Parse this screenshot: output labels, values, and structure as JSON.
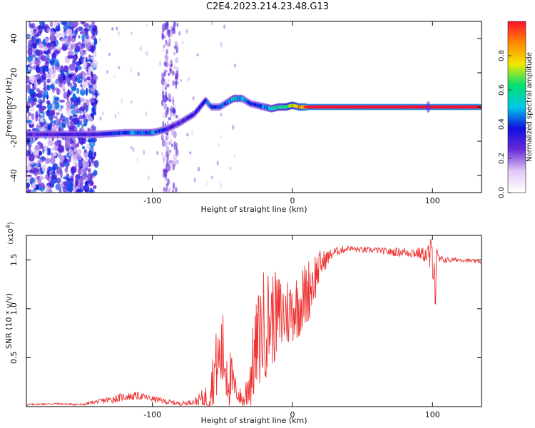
{
  "figure": {
    "title": "C2E4.2023.214.23.48.G13"
  },
  "chart_data": [
    {
      "type": "heatmap",
      "title": "",
      "xlabel": "Height of straight line (km)",
      "ylabel": "Frequency (Hz)",
      "xlim": [
        -190,
        135
      ],
      "ylim": [
        -50,
        50
      ],
      "x_ticks": [
        -100,
        0,
        100
      ],
      "x_tick_labels": [
        "-100",
        "0",
        "100"
      ],
      "y_ticks": [
        -40,
        -20,
        0,
        20,
        40
      ],
      "y_tick_labels": [
        "-40",
        "-20",
        "0",
        "20",
        "40"
      ],
      "colorbar": {
        "label": "Normalized spectral amplitude",
        "range": [
          0,
          1
        ],
        "ticks": [
          0.0,
          0.2,
          0.4,
          0.6,
          0.8
        ],
        "tick_labels": [
          "0.0",
          "0.2",
          "0.4",
          "0.6",
          "0.8"
        ],
        "colors": [
          "#ffffff",
          "#e2c8f5",
          "#6a2bd8",
          "#1010e0",
          "#00c8e8",
          "#00e070",
          "#f0e800",
          "#ff8800",
          "#ff1030"
        ]
      },
      "ridge": {
        "x": [
          -190,
          -140,
          -120,
          -100,
          -90,
          -80,
          -70,
          -62,
          -58,
          -52,
          -48,
          -42,
          -36,
          -30,
          -25,
          -20,
          -15,
          -10,
          -5,
          0,
          5,
          10,
          30,
          60,
          100,
          135
        ],
        "frequency": [
          -16,
          -16,
          -15,
          -15,
          -13,
          -9,
          -4,
          4,
          0,
          0,
          2,
          5,
          5,
          2,
          1,
          0,
          -1,
          0,
          0,
          1,
          0,
          0,
          0,
          0,
          0,
          0
        ],
        "amplitude": [
          0.3,
          0.35,
          0.45,
          0.5,
          0.35,
          0.3,
          0.35,
          0.4,
          0.45,
          0.4,
          0.45,
          0.55,
          0.5,
          0.4,
          0.45,
          0.5,
          0.55,
          0.6,
          0.7,
          0.85,
          0.95,
          0.98,
          1.0,
          1.0,
          1.0,
          1.0
        ]
      }
    },
    {
      "type": "line",
      "title": "",
      "xlabel": "Height of straight line (km)",
      "ylabel": "SNR (10 * v/v)",
      "y_multiplier_label": "(x10",
      "y_multiplier_exponent": "4",
      "y_multiplier_close": ")",
      "xlim": [
        -190,
        135
      ],
      "ylim": [
        0,
        1.75
      ],
      "x_ticks": [
        -100,
        0,
        100
      ],
      "x_tick_labels": [
        "-100",
        "0",
        "100"
      ],
      "y_ticks": [
        0.5,
        1.0,
        1.5
      ],
      "y_tick_labels": [
        "0.5",
        "1.0",
        "1.5"
      ],
      "series": [
        {
          "color": "#ee3333",
          "x": [
            -190,
            -170,
            -150,
            -140,
            -130,
            -120,
            -110,
            -100,
            -90,
            -80,
            -70,
            -60,
            -55,
            -50,
            -45,
            -40,
            -35,
            -30,
            -25,
            -20,
            -15,
            -10,
            -5,
            0,
            5,
            10,
            15,
            20,
            25,
            30,
            40,
            50,
            60,
            70,
            80,
            90,
            95,
            100,
            105,
            110,
            120,
            135
          ],
          "mean": [
            0.02,
            0.03,
            0.02,
            0.05,
            0.07,
            0.1,
            0.11,
            0.08,
            0.05,
            0.03,
            0.05,
            0.1,
            0.4,
            0.55,
            0.3,
            0.15,
            0.05,
            0.3,
            0.65,
            0.85,
            0.9,
            0.92,
            0.95,
            1.0,
            1.05,
            1.15,
            1.3,
            1.45,
            1.52,
            1.58,
            1.62,
            1.6,
            1.6,
            1.58,
            1.58,
            1.57,
            1.55,
            1.52,
            1.5,
            1.5,
            1.5,
            1.48
          ],
          "jitter": [
            0.01,
            0.01,
            0.01,
            0.02,
            0.04,
            0.04,
            0.04,
            0.03,
            0.03,
            0.02,
            0.03,
            0.15,
            0.35,
            0.45,
            0.35,
            0.1,
            0.1,
            0.35,
            0.5,
            0.6,
            0.5,
            0.45,
            0.4,
            0.35,
            0.35,
            0.35,
            0.3,
            0.15,
            0.08,
            0.05,
            0.03,
            0.03,
            0.03,
            0.04,
            0.05,
            0.06,
            0.08,
            0.25,
            0.05,
            0.03,
            0.02,
            0.02
          ]
        }
      ]
    }
  ]
}
